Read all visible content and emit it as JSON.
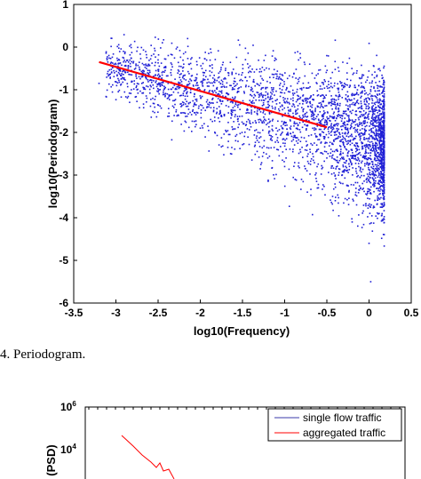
{
  "chart_data": [
    {
      "type": "scatter",
      "title": "",
      "xlabel": "log10(Frequency)",
      "ylabel": "log10(Periodogram)",
      "xlim": [
        -3.5,
        0.5
      ],
      "ylim": [
        -6,
        1
      ],
      "xticks": [
        "-3.5",
        "-3",
        "-2.5",
        "-2",
        "-1.5",
        "-1",
        "-0.5",
        "0",
        "0.5"
      ],
      "yticks": [
        "1",
        "0",
        "-1",
        "-2",
        "-3",
        "-4",
        "-5",
        "-6"
      ],
      "grid": false,
      "series": [
        {
          "kind": "scatter",
          "color": "#1f1fd6",
          "points": [
            [
              -3.2,
              -0.85
            ],
            [
              -3.05,
              -0.6
            ],
            [
              -2.85,
              -0.35
            ],
            [
              -2.75,
              -1.0
            ],
            [
              -2.6,
              -0.55
            ],
            [
              -2.5,
              -0.3
            ],
            [
              -2.45,
              -0.9
            ],
            [
              -2.35,
              -0.6
            ],
            [
              -2.25,
              -0.45
            ],
            [
              -2.2,
              -1.35
            ],
            [
              -2.15,
              0.2
            ],
            [
              -2.1,
              -0.25
            ],
            [
              -2.05,
              -0.9
            ],
            [
              -2.0,
              -1.9
            ],
            [
              -1.95,
              -0.6
            ],
            [
              -1.9,
              -0.15
            ],
            [
              -1.85,
              -1.2
            ],
            [
              -1.8,
              -0.95
            ],
            [
              -1.75,
              -1.6
            ],
            [
              -1.7,
              -0.5
            ],
            [
              -1.65,
              -2.05
            ],
            [
              -1.6,
              -0.8
            ],
            [
              -1.55,
              -1.3
            ],
            [
              -1.5,
              -0.6
            ],
            [
              -1.45,
              -1.75
            ],
            [
              -1.4,
              -1.0
            ],
            [
              -1.35,
              -2.3
            ],
            [
              -1.3,
              -0.9
            ],
            [
              -1.25,
              -1.5
            ],
            [
              -1.2,
              -2.6
            ],
            [
              -1.15,
              -1.1
            ],
            [
              -1.1,
              -1.9
            ],
            [
              -1.05,
              -0.85
            ],
            [
              -1.0,
              -2.8
            ],
            [
              -0.95,
              -1.3
            ],
            [
              -0.9,
              -2.0
            ],
            [
              -0.85,
              -1.55
            ],
            [
              -0.8,
              -3.1
            ],
            [
              -0.75,
              -1.2
            ],
            [
              -0.7,
              -2.4
            ],
            [
              -0.65,
              -1.7
            ],
            [
              -0.6,
              -3.3
            ],
            [
              -0.55,
              -1.4
            ],
            [
              -0.5,
              -2.6
            ],
            [
              -0.45,
              -1.9
            ],
            [
              -0.4,
              -3.6
            ],
            [
              -0.35,
              -1.6
            ],
            [
              -0.3,
              -2.9
            ],
            [
              -0.25,
              -2.2
            ],
            [
              -0.2,
              -4.1
            ],
            [
              -0.15,
              -1.5
            ],
            [
              -0.1,
              -3.3
            ],
            [
              -0.05,
              -2.0
            ],
            [
              0.0,
              -4.6
            ],
            [
              0.05,
              -1.7
            ],
            [
              0.1,
              -2.9
            ],
            [
              0.15,
              -2.3
            ],
            [
              0.02,
              -5.5
            ],
            [
              0.12,
              -3.9
            ],
            [
              0.18,
              -1.1
            ]
          ]
        },
        {
          "kind": "line",
          "color": "#ff0000",
          "x": [
            -3.2,
            -0.5
          ],
          "y": [
            -0.35,
            -1.88
          ]
        }
      ]
    },
    {
      "type": "line",
      "title": "",
      "xlabel": "",
      "ylabel": "(PSD)",
      "yscale": "log",
      "ylim_partial": [
        10,
        1000000
      ],
      "yticks": [
        "10^6",
        "10^4"
      ],
      "legend": {
        "placement": "top-right",
        "entries": [
          {
            "name": "single flow traffic",
            "color": "#3a3aa8"
          },
          {
            "name": "aggregated traffic",
            "color": "#ff0000"
          }
        ]
      }
    }
  ],
  "caption": "4. Periodogram."
}
